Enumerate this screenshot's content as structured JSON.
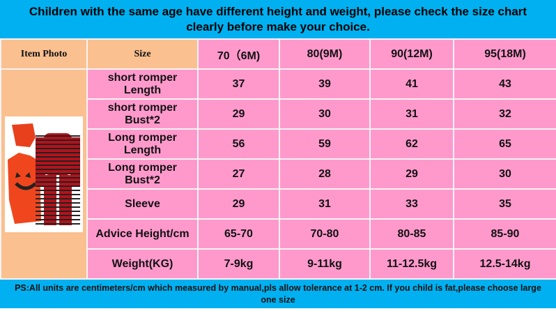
{
  "header": {
    "title": "Children with the same age have different height and weight, please check the size chart clearly before make your choice."
  },
  "table": {
    "columns": [
      "Item Photo",
      "Size",
      "70（6M)",
      "80(9M)",
      "90(12M)",
      "95(18M)"
    ],
    "rows": [
      [
        "short romper Length",
        "37",
        "39",
        "41",
        "43"
      ],
      [
        "short romper Bust*2",
        "29",
        "30",
        "31",
        "32"
      ],
      [
        "Long romper Length",
        "56",
        "59",
        "62",
        "65"
      ],
      [
        "Long romper Bust*2",
        "27",
        "28",
        "29",
        "30"
      ],
      [
        "Sleeve",
        "29",
        "31",
        "33",
        "35"
      ],
      [
        "Advice Height/cm",
        "65-70",
        "70-80",
        "80-85",
        "85-90"
      ],
      [
        "Weight(KG)",
        "7-9kg",
        "9-11kg",
        "11-12.5kg",
        "12.5-14kg"
      ]
    ]
  },
  "footer": {
    "note": "PS:All units are centimeters/cm which measured by manual,pls allow tolerance at 1-2 cm. If you child is fat,please choose large one size"
  }
}
